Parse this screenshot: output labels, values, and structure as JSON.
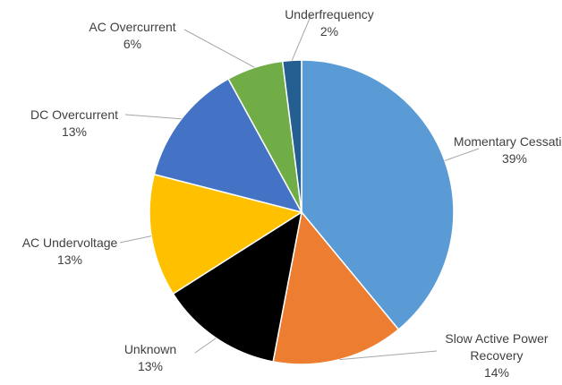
{
  "chart_data": {
    "type": "pie",
    "categories": [
      "Momentary Cessation",
      "Slow Active Power Recovery",
      "Unknown",
      "AC Undervoltage",
      "DC Overcurrent",
      "AC Overcurrent",
      "Underfrequency"
    ],
    "values": [
      39,
      14,
      13,
      13,
      13,
      6,
      2
    ],
    "value_labels": [
      "39%",
      "14%",
      "13%",
      "13%",
      "13%",
      "6%",
      "2%"
    ],
    "colors": [
      "#5b9bd5",
      "#ed7d31",
      "#000000",
      "#ffc000",
      "#4472c4",
      "#70ad47",
      "#255e91"
    ]
  }
}
